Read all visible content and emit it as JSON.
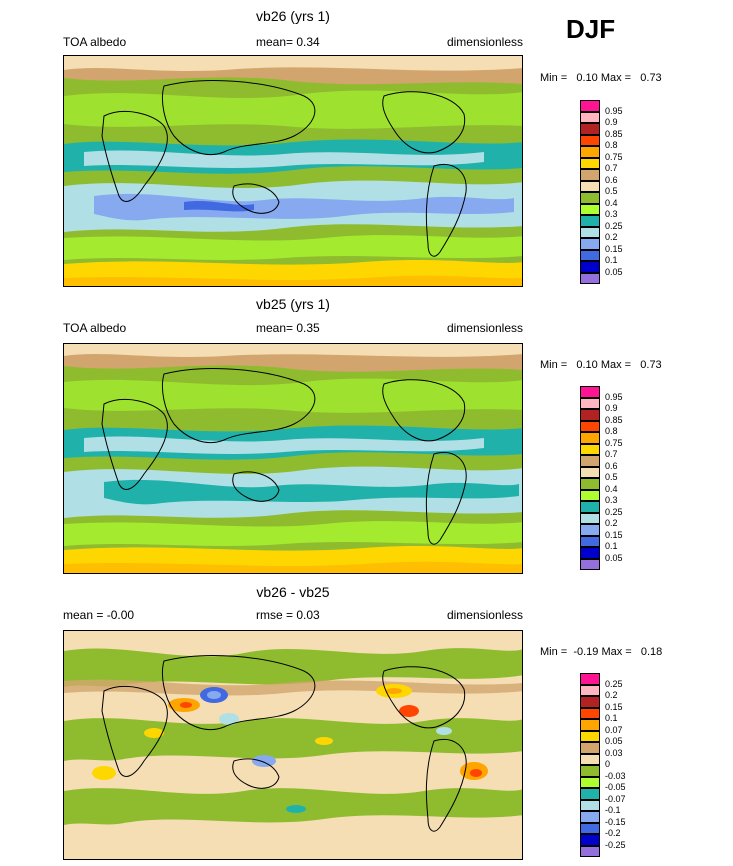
{
  "season": "DJF",
  "panels": [
    {
      "title": "vb26 (yrs 1)",
      "left_label": "TOA albedo",
      "mean_label": "mean=   0.34",
      "units": "dimensionless",
      "minmax": "Min =   0.10 Max =   0.73",
      "colorbar": {
        "labels": [
          "0.95",
          "0.9",
          "0.85",
          "0.8",
          "0.75",
          "0.7",
          "0.6",
          "0.5",
          "0.4",
          "0.3",
          "0.25",
          "0.2",
          "0.15",
          "0.1",
          "0.05"
        ],
        "colors": [
          "#ff1493",
          "#ffb6c1",
          "#b22222",
          "#ff4500",
          "#ffa500",
          "#ffd700",
          "#d2a56f",
          "#f5deb3",
          "#8fbc2f",
          "#adff2f",
          "#20b2aa",
          "#b0e0e6",
          "#87a9f0",
          "#4169e1",
          "#0000cd",
          "#9370db"
        ]
      }
    },
    {
      "title": "vb25 (yrs 1)",
      "left_label": "TOA albedo",
      "mean_label": "mean=   0.35",
      "units": "dimensionless",
      "minmax": "Min =   0.10 Max =   0.73",
      "colorbar": {
        "labels": [
          "0.95",
          "0.9",
          "0.85",
          "0.8",
          "0.75",
          "0.7",
          "0.6",
          "0.5",
          "0.4",
          "0.3",
          "0.25",
          "0.2",
          "0.15",
          "0.1",
          "0.05"
        ],
        "colors": [
          "#ff1493",
          "#ffb6c1",
          "#b22222",
          "#ff4500",
          "#ffa500",
          "#ffd700",
          "#d2a56f",
          "#f5deb3",
          "#8fbc2f",
          "#adff2f",
          "#20b2aa",
          "#b0e0e6",
          "#87a9f0",
          "#4169e1",
          "#0000cd",
          "#9370db"
        ]
      }
    },
    {
      "title": "vb26 - vb25",
      "left_label": "mean =  -0.00",
      "mean_label": "rmse =   0.03",
      "units": "dimensionless",
      "minmax": "Min =  -0.19 Max =   0.18",
      "colorbar": {
        "labels": [
          "0.25",
          "0.2",
          "0.15",
          "0.1",
          "0.07",
          "0.05",
          "0.03",
          "0",
          "-0.03",
          "-0.05",
          "-0.07",
          "-0.1",
          "-0.15",
          "-0.2",
          "-0.25"
        ],
        "colors": [
          "#ff1493",
          "#ffb6c1",
          "#b22222",
          "#ff4500",
          "#ffa500",
          "#ffd700",
          "#d2a56f",
          "#f5deb3",
          "#8fbc2f",
          "#adff2f",
          "#20b2aa",
          "#b0e0e6",
          "#87a9f0",
          "#4169e1",
          "#0000cd",
          "#9370db"
        ]
      }
    }
  ]
}
